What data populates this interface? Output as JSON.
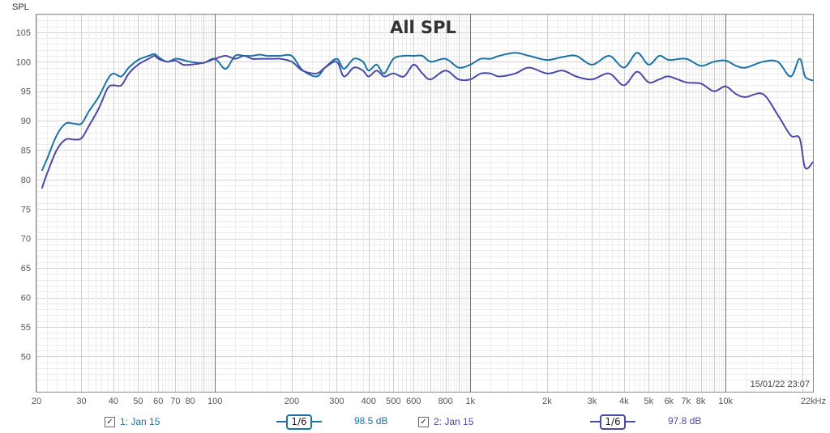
{
  "chart_data": {
    "type": "line",
    "title": "All SPL",
    "ylabel": "SPL",
    "xlabel": "",
    "x_scale": "log",
    "xlim": [
      20,
      22000
    ],
    "ylim": [
      44,
      108
    ],
    "grid": true,
    "y_ticks": [
      50,
      55,
      60,
      65,
      70,
      75,
      80,
      85,
      90,
      95,
      100,
      105
    ],
    "x_ticks": [
      {
        "v": 20,
        "label": "20"
      },
      {
        "v": 30,
        "label": "30"
      },
      {
        "v": 40,
        "label": "40"
      },
      {
        "v": 50,
        "label": "50"
      },
      {
        "v": 60,
        "label": "60"
      },
      {
        "v": 70,
        "label": "70"
      },
      {
        "v": 80,
        "label": "80"
      },
      {
        "v": 100,
        "label": "100"
      },
      {
        "v": 200,
        "label": "200"
      },
      {
        "v": 300,
        "label": "300"
      },
      {
        "v": 400,
        "label": "400"
      },
      {
        "v": 500,
        "label": "500"
      },
      {
        "v": 600,
        "label": "600"
      },
      {
        "v": 800,
        "label": "800"
      },
      {
        "v": 1000,
        "label": "1k"
      },
      {
        "v": 2000,
        "label": "2k"
      },
      {
        "v": 3000,
        "label": "3k"
      },
      {
        "v": 4000,
        "label": "4k"
      },
      {
        "v": 5000,
        "label": "5k"
      },
      {
        "v": 6000,
        "label": "6k"
      },
      {
        "v": 7000,
        "label": "7k"
      },
      {
        "v": 8000,
        "label": "8k"
      },
      {
        "v": 10000,
        "label": "10k"
      },
      {
        "v": 22000,
        "label": "22kHz"
      }
    ],
    "series": [
      {
        "name": "1: Jan 15",
        "color": "#1a73a6",
        "x": [
          21,
          22,
          24,
          26,
          28,
          30,
          32,
          35,
          38,
          40,
          43,
          46,
          50,
          55,
          58,
          60,
          65,
          70,
          75,
          80,
          90,
          100,
          110,
          120,
          130,
          140,
          150,
          160,
          170,
          180,
          200,
          220,
          250,
          270,
          300,
          320,
          350,
          380,
          400,
          430,
          460,
          500,
          550,
          600,
          650,
          700,
          800,
          900,
          1000,
          1100,
          1200,
          1300,
          1500,
          1700,
          2000,
          2300,
          2600,
          3000,
          3500,
          4000,
          4500,
          5000,
          5500,
          6000,
          7000,
          8000,
          9000,
          10000,
          11000,
          12000,
          14000,
          16000,
          18000,
          19500,
          20500,
          22000
        ],
        "y": [
          81.5,
          83.5,
          87.5,
          89.5,
          89.5,
          89.5,
          91.5,
          94,
          97,
          98,
          97.5,
          99,
          100.3,
          101,
          101.3,
          100.8,
          100,
          100.5,
          100.3,
          100,
          99.8,
          100.5,
          98.8,
          101,
          101,
          101,
          101.2,
          101,
          101,
          101,
          101,
          98.6,
          97.5,
          99,
          100.5,
          98.8,
          100.5,
          100,
          98.5,
          99.5,
          98,
          100.5,
          101,
          101,
          101,
          100,
          100.5,
          99,
          99.5,
          100.5,
          100.5,
          101,
          101.5,
          101,
          100.3,
          100.8,
          101,
          99.5,
          101,
          99,
          101.5,
          99.5,
          101,
          100.3,
          100.5,
          99.3,
          100,
          100.2,
          99.3,
          99,
          100,
          100,
          97.5,
          100.5,
          97.5,
          96.8
        ]
      },
      {
        "name": "2: Jan 15",
        "color": "#4a4aa8",
        "x": [
          21,
          22,
          24,
          26,
          28,
          30,
          32,
          35,
          38,
          40,
          43,
          46,
          50,
          55,
          58,
          60,
          65,
          70,
          75,
          80,
          90,
          100,
          110,
          120,
          130,
          140,
          150,
          160,
          170,
          180,
          200,
          220,
          250,
          270,
          300,
          320,
          350,
          380,
          400,
          430,
          460,
          500,
          550,
          600,
          650,
          700,
          800,
          900,
          1000,
          1100,
          1200,
          1300,
          1500,
          1700,
          2000,
          2300,
          2600,
          3000,
          3500,
          4000,
          4500,
          5000,
          5500,
          6000,
          7000,
          8000,
          9000,
          10000,
          11000,
          12000,
          14000,
          16000,
          18000,
          19500,
          20500,
          22000
        ],
        "y": [
          78.5,
          81,
          85,
          86.8,
          86.8,
          87,
          89,
          92,
          95.5,
          96,
          96,
          98,
          99.5,
          100.5,
          101,
          100.5,
          100,
          100.2,
          99.5,
          99.5,
          99.8,
          100.5,
          101,
          100.5,
          101,
          100.5,
          100.5,
          100.5,
          100.5,
          100.5,
          100,
          98.5,
          98,
          99,
          100,
          97.5,
          99,
          98.5,
          97.5,
          98.5,
          97.5,
          98,
          97.5,
          99.5,
          98,
          97,
          98.5,
          97,
          97,
          98,
          98,
          97.5,
          98,
          99,
          98,
          98.5,
          97.5,
          97,
          98,
          96,
          98.3,
          96.5,
          97,
          97.5,
          96.5,
          96.3,
          95,
          95.8,
          94.5,
          94,
          94.5,
          91,
          87.5,
          87,
          82,
          83
        ]
      }
    ]
  },
  "timestamp": "15/01/22 23:07",
  "legend": [
    {
      "label": "1: Jan 15",
      "checkbox": "✓",
      "smoothing": "1/6",
      "level": "98.5 dB",
      "color": "#1a73a6"
    },
    {
      "label": "2: Jan 15",
      "checkbox": "✓",
      "smoothing": "1/6",
      "level": "97.8 dB",
      "color": "#4a4aa8"
    }
  ]
}
